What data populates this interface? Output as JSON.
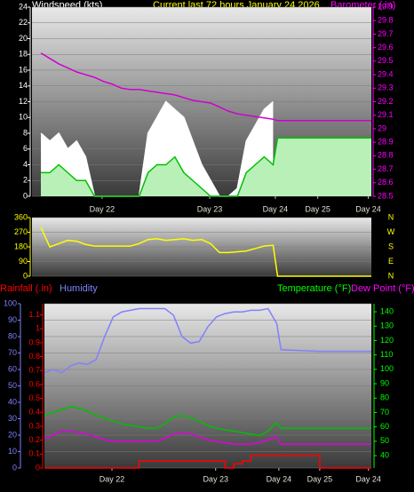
{
  "chart_data": [
    {
      "type": "line",
      "title": "Current last 72 hours January 24 2026",
      "y_label": "Windspeed (kts)",
      "y2_label": "Barometer (.in)",
      "x": [
        0,
        2,
        4,
        6,
        8,
        10,
        12,
        14,
        16,
        18,
        20,
        22,
        24,
        26,
        28,
        30,
        32,
        34,
        36,
        38,
        40,
        42,
        44,
        46,
        48,
        50,
        52,
        54,
        55,
        64,
        76
      ],
      "xlim": [
        0,
        76
      ],
      "xticks": [
        {
          "value": 15.7,
          "label": "Day 22"
        },
        {
          "value": 39.8,
          "label": "Day 23"
        },
        {
          "value": 54.5,
          "label": "Day 24"
        },
        {
          "value": 64,
          "label": "Day 25"
        },
        {
          "value": 75.3,
          "label": "Day 24"
        }
      ],
      "ylim": [
        0,
        24
      ],
      "yticks": [
        0,
        2,
        4,
        6,
        8,
        10,
        12,
        14,
        16,
        18,
        20,
        22,
        24
      ],
      "y2lim": [
        28.5,
        29.9
      ],
      "y2ticks": [
        28.5,
        28.6,
        28.7,
        28.8,
        28.9,
        29,
        29.1,
        29.2,
        29.3,
        29.4,
        29.5,
        29.6,
        29.7,
        29.8,
        29.9
      ],
      "grid": true,
      "series": [
        {
          "color": "#ffffff",
          "fill": "#ffffff",
          "values": [
            null,
            8,
            7,
            8,
            6,
            7,
            5,
            0,
            0,
            0,
            0,
            0,
            0,
            8,
            10,
            12,
            11,
            10,
            7,
            4,
            2,
            0,
            0,
            1,
            7,
            9,
            11,
            12,
            null,
            null,
            null
          ]
        },
        {
          "color": "#00c000",
          "fill": "#b8f0b8",
          "values": [
            null,
            3,
            3,
            4,
            3,
            2,
            2,
            0,
            0,
            0,
            0,
            0,
            0,
            3,
            4,
            4,
            5,
            3,
            2,
            1,
            0,
            0,
            0,
            0,
            3,
            4,
            5,
            4,
            7.4,
            7.4,
            7.4
          ]
        },
        {
          "color": "#d000d0",
          "axis": "y2",
          "values": [
            null,
            29.56,
            29.52,
            29.48,
            29.45,
            29.42,
            29.4,
            29.38,
            29.35,
            29.33,
            29.3,
            29.29,
            29.29,
            29.28,
            29.27,
            29.26,
            29.25,
            29.23,
            29.21,
            29.2,
            29.19,
            29.16,
            29.13,
            29.11,
            29.1,
            29.09,
            29.08,
            29.07,
            29.06,
            29.06,
            29.06
          ]
        }
      ]
    },
    {
      "type": "line",
      "x": [
        0,
        2,
        4,
        6,
        8,
        10,
        12,
        14,
        16,
        18,
        20,
        22,
        24,
        26,
        28,
        30,
        32,
        34,
        36,
        38,
        40,
        42,
        44,
        46,
        48,
        50,
        52,
        54,
        55,
        64,
        76
      ],
      "xlim": [
        0,
        76
      ],
      "ylim": [
        0,
        360
      ],
      "yticks": [
        0,
        90,
        180,
        270,
        360
      ],
      "y2lim": [
        0,
        360
      ],
      "y2ticks": [
        {
          "value": 0,
          "label": "N"
        },
        {
          "value": 90,
          "label": "E"
        },
        {
          "value": 180,
          "label": "S"
        },
        {
          "value": 270,
          "label": "W"
        },
        {
          "value": 360,
          "label": "N"
        }
      ],
      "grid": true,
      "series": [
        {
          "color": "#ffff00",
          "values": [
            null,
            300,
            180,
            200,
            220,
            215,
            195,
            185,
            185,
            185,
            185,
            185,
            200,
            225,
            230,
            220,
            225,
            230,
            220,
            225,
            200,
            145,
            145,
            150,
            155,
            170,
            185,
            190,
            0,
            0,
            0
          ]
        }
      ]
    },
    {
      "type": "line",
      "x": [
        0,
        2,
        4,
        6,
        8,
        10,
        12,
        14,
        16,
        18,
        20,
        22,
        24,
        26,
        28,
        30,
        32,
        34,
        36,
        38,
        40,
        42,
        44,
        46,
        48,
        50,
        52,
        54,
        55,
        64,
        76
      ],
      "xlim": [
        0,
        76
      ],
      "xticks": [
        {
          "value": 15.7,
          "label": "Day 22"
        },
        {
          "value": 39.8,
          "label": "Day 23"
        },
        {
          "value": 54.5,
          "label": "Day 24"
        },
        {
          "value": 64,
          "label": "Day 25"
        },
        {
          "value": 75.3,
          "label": "Day 24"
        }
      ],
      "ylim": [
        0,
        100
      ],
      "yticks": [
        0,
        10,
        20,
        30,
        40,
        50,
        60,
        70,
        80,
        90,
        100
      ],
      "y2lim": [
        31.4,
        145.6
      ],
      "y2ticks": [
        40,
        50,
        60,
        70,
        80,
        90,
        100,
        110,
        120,
        130,
        140
      ],
      "y3lim": [
        0,
        1.18
      ],
      "y3ticks": [
        0,
        0.1,
        0.2,
        0.3,
        0.4,
        0.5,
        0.6,
        0.7,
        0.8,
        0.9,
        1,
        1.1
      ],
      "grid": true,
      "series": [
        {
          "name": "Rainfall (.in)",
          "color": "#ff0000",
          "axis": "y3",
          "step": "post",
          "values": [
            0,
            0,
            0,
            0,
            0,
            0,
            0,
            0,
            0,
            0,
            0,
            0.05,
            0.05,
            0.05,
            0.05,
            0.05,
            0.05,
            0.05,
            0.05,
            0.05,
            0.05,
            0,
            0.03,
            0.05,
            0.09,
            0.09,
            0.09,
            0.09,
            0.09,
            0,
            0
          ]
        },
        {
          "name": "Humidity",
          "color": "#8080ff",
          "values": [
            58,
            60,
            58,
            62,
            64,
            63,
            66,
            80,
            92,
            95,
            96,
            97,
            97,
            97,
            97,
            93,
            80,
            76,
            77,
            86,
            92,
            94,
            95,
            95,
            96,
            96,
            97,
            88,
            72,
            71,
            71
          ]
        },
        {
          "name": "Temperature (°F)",
          "color": "#00c000",
          "axis": "y2",
          "values": [
            68,
            70,
            72,
            74,
            73,
            71,
            68,
            66,
            64,
            62,
            61,
            60,
            59,
            59,
            62,
            67,
            68,
            66,
            64,
            61,
            59,
            58,
            57,
            56,
            55,
            54,
            57,
            63,
            59,
            59,
            59
          ]
        },
        {
          "name": "Dew Point (°F)",
          "color": "#e000e0",
          "axis": "y2",
          "values": [
            52,
            54,
            57,
            57,
            56,
            55,
            53,
            51,
            50,
            50,
            50,
            50,
            50,
            50,
            52,
            55,
            56,
            55,
            53,
            51,
            50,
            49,
            48,
            48,
            48,
            49,
            51,
            53,
            48,
            48,
            48
          ]
        }
      ]
    }
  ]
}
